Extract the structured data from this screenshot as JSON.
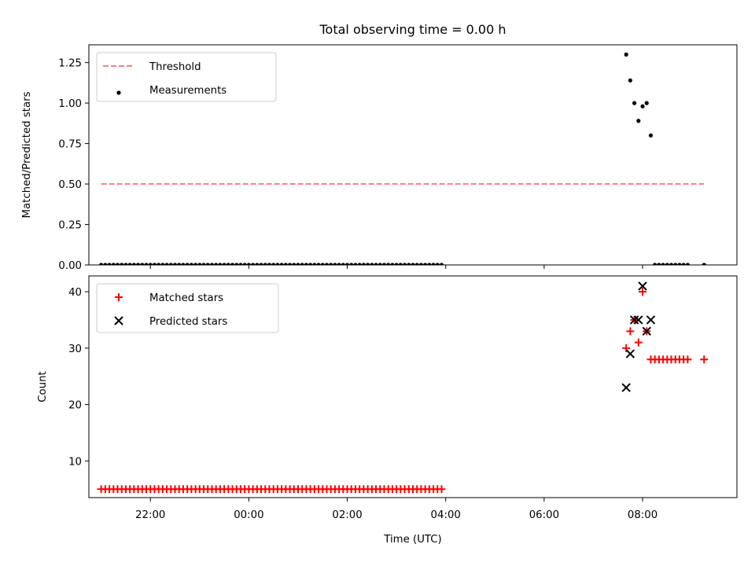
{
  "chart_data": {
    "type": "scatter",
    "title": "Total observing time = 0.00 h",
    "xlabel": "Time (UTC)",
    "x_unit": "hours",
    "xlim": [
      "20:45",
      "09:55"
    ],
    "xticks": [
      "22:00",
      "00:00",
      "02:00",
      "04:00",
      "06:00",
      "08:00"
    ],
    "panels": [
      {
        "ylabel": "Matched/Predicted stars",
        "ylim": [
          0,
          1.36
        ],
        "yticks": [
          "0.00",
          "0.25",
          "0.50",
          "0.75",
          "1.00",
          "1.25"
        ],
        "legend_position": "upper left",
        "series": [
          {
            "name": "Threshold",
            "kind": "dashed-line",
            "color": "#ff7f7f",
            "x": [
              "21:00",
              "09:15"
            ],
            "y": [
              0.5,
              0.5
            ]
          },
          {
            "name": "Measurements",
            "kind": "dot",
            "color": "#000000",
            "x": [
              "21:00",
              "21:05",
              "21:10",
              "21:15",
              "21:20",
              "21:25",
              "21:30",
              "21:35",
              "21:40",
              "21:45",
              "21:50",
              "21:55",
              "22:00",
              "22:05",
              "22:10",
              "22:15",
              "22:20",
              "22:25",
              "22:30",
              "22:35",
              "22:40",
              "22:45",
              "22:50",
              "22:55",
              "23:00",
              "23:05",
              "23:10",
              "23:15",
              "23:20",
              "23:25",
              "23:30",
              "23:35",
              "23:40",
              "23:45",
              "23:50",
              "23:55",
              "00:00",
              "00:05",
              "00:10",
              "00:15",
              "00:20",
              "00:25",
              "00:30",
              "00:35",
              "00:40",
              "00:45",
              "00:50",
              "00:55",
              "01:00",
              "01:05",
              "01:10",
              "01:15",
              "01:20",
              "01:25",
              "01:30",
              "01:35",
              "01:40",
              "01:45",
              "01:50",
              "01:55",
              "02:00",
              "02:05",
              "02:10",
              "02:15",
              "02:20",
              "02:25",
              "02:30",
              "02:35",
              "02:40",
              "02:45",
              "02:50",
              "02:55",
              "03:00",
              "03:05",
              "03:10",
              "03:15",
              "03:20",
              "03:25",
              "03:30",
              "03:35",
              "03:40",
              "03:45",
              "03:50",
              "03:55",
              "07:40",
              "07:45",
              "07:50",
              "07:55",
              "08:00",
              "08:05",
              "08:10",
              "08:15",
              "08:20",
              "08:25",
              "08:30",
              "08:35",
              "08:40",
              "08:45",
              "08:50",
              "08:55",
              "09:15"
            ],
            "y": [
              0,
              0,
              0,
              0,
              0,
              0,
              0,
              0,
              0,
              0,
              0,
              0,
              0,
              0,
              0,
              0,
              0,
              0,
              0,
              0,
              0,
              0,
              0,
              0,
              0,
              0,
              0,
              0,
              0,
              0,
              0,
              0,
              0,
              0,
              0,
              0,
              0,
              0,
              0,
              0,
              0,
              0,
              0,
              0,
              0,
              0,
              0,
              0,
              0,
              0,
              0,
              0,
              0,
              0,
              0,
              0,
              0,
              0,
              0,
              0,
              0,
              0,
              0,
              0,
              0,
              0,
              0,
              0,
              0,
              0,
              0,
              0,
              0,
              0,
              0,
              0,
              0,
              0,
              0,
              0,
              0,
              0,
              0,
              0,
              1.3,
              1.14,
              1.0,
              0.89,
              0.98,
              1.0,
              0.8,
              0,
              0,
              0,
              0,
              0,
              0,
              0,
              0,
              0,
              0
            ]
          }
        ]
      },
      {
        "ylabel": "Count",
        "ylim": [
          3.5,
          42.8
        ],
        "yticks": [
          "10",
          "20",
          "30",
          "40"
        ],
        "legend_position": "upper left",
        "series": [
          {
            "name": "Matched stars",
            "kind": "plus",
            "color": "#ff0000",
            "x": [
              "21:00",
              "21:05",
              "21:10",
              "21:15",
              "21:20",
              "21:25",
              "21:30",
              "21:35",
              "21:40",
              "21:45",
              "21:50",
              "21:55",
              "22:00",
              "22:05",
              "22:10",
              "22:15",
              "22:20",
              "22:25",
              "22:30",
              "22:35",
              "22:40",
              "22:45",
              "22:50",
              "22:55",
              "23:00",
              "23:05",
              "23:10",
              "23:15",
              "23:20",
              "23:25",
              "23:30",
              "23:35",
              "23:40",
              "23:45",
              "23:50",
              "23:55",
              "00:00",
              "00:05",
              "00:10",
              "00:15",
              "00:20",
              "00:25",
              "00:30",
              "00:35",
              "00:40",
              "00:45",
              "00:50",
              "00:55",
              "01:00",
              "01:05",
              "01:10",
              "01:15",
              "01:20",
              "01:25",
              "01:30",
              "01:35",
              "01:40",
              "01:45",
              "01:50",
              "01:55",
              "02:00",
              "02:05",
              "02:10",
              "02:15",
              "02:20",
              "02:25",
              "02:30",
              "02:35",
              "02:40",
              "02:45",
              "02:50",
              "02:55",
              "03:00",
              "03:05",
              "03:10",
              "03:15",
              "03:20",
              "03:25",
              "03:30",
              "03:35",
              "03:40",
              "03:45",
              "03:50",
              "03:55",
              "07:40",
              "07:45",
              "07:50",
              "07:55",
              "08:00",
              "08:05",
              "08:10",
              "08:15",
              "08:20",
              "08:25",
              "08:30",
              "08:35",
              "08:40",
              "08:45",
              "08:50",
              "08:55",
              "09:15"
            ],
            "y": [
              5,
              5,
              5,
              5,
              5,
              5,
              5,
              5,
              5,
              5,
              5,
              5,
              5,
              5,
              5,
              5,
              5,
              5,
              5,
              5,
              5,
              5,
              5,
              5,
              5,
              5,
              5,
              5,
              5,
              5,
              5,
              5,
              5,
              5,
              5,
              5,
              5,
              5,
              5,
              5,
              5,
              5,
              5,
              5,
              5,
              5,
              5,
              5,
              5,
              5,
              5,
              5,
              5,
              5,
              5,
              5,
              5,
              5,
              5,
              5,
              5,
              5,
              5,
              5,
              5,
              5,
              5,
              5,
              5,
              5,
              5,
              5,
              5,
              5,
              5,
              5,
              5,
              5,
              5,
              5,
              5,
              5,
              5,
              5,
              30,
              33,
              35,
              31,
              40,
              33,
              28,
              28,
              28,
              28,
              28,
              28,
              28,
              28,
              28,
              28,
              28
            ]
          },
          {
            "name": "Predicted stars",
            "kind": "x",
            "color": "#000000",
            "x": [
              "07:40",
              "07:45",
              "07:50",
              "07:55",
              "08:00",
              "08:05",
              "08:10"
            ],
            "y": [
              23,
              29,
              35,
              35,
              41,
              33,
              35
            ]
          }
        ]
      }
    ]
  }
}
